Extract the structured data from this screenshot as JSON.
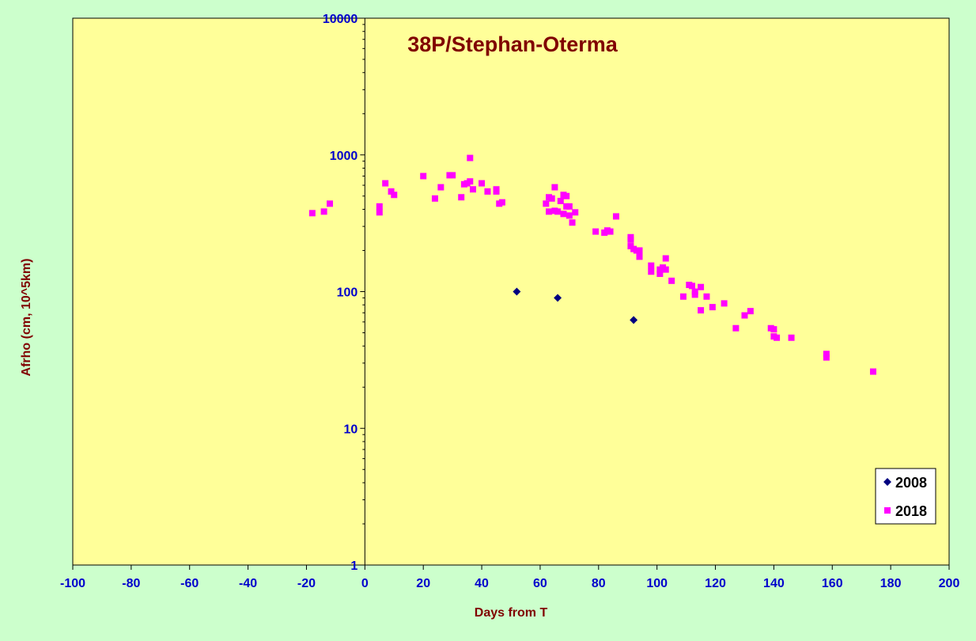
{
  "chart_data": {
    "type": "scatter",
    "title": "38P/Stephan-Oterma",
    "xlabel": "Days from T",
    "ylabel": "Afrho (cm, 10^5km)",
    "xlim": [
      -100,
      200
    ],
    "ylim": [
      1,
      10000
    ],
    "yscale": "log",
    "x_ticks": [
      "-100",
      "-80",
      "-60",
      "-40",
      "-20",
      "0",
      "20",
      "40",
      "60",
      "80",
      "100",
      "120",
      "140",
      "160",
      "180",
      "200"
    ],
    "y_ticks": [
      "1",
      "10",
      "100",
      "1000",
      "10000"
    ],
    "grid": false,
    "legend_position": "bottom-right",
    "colors": {
      "page_bg": "#ccffcc",
      "plot_bg": "#ffff99",
      "tick_text": "#0000cc",
      "title_text": "#800000"
    },
    "series": [
      {
        "name": "2008",
        "marker": "diamond",
        "color": "#000080",
        "points": [
          [
            52,
            100
          ],
          [
            66,
            90
          ],
          [
            92,
            62
          ]
        ]
      },
      {
        "name": "2018",
        "marker": "square",
        "color": "#ff00ff",
        "points": [
          [
            -18,
            375
          ],
          [
            -14,
            385
          ],
          [
            -12,
            440
          ],
          [
            5,
            380
          ],
          [
            5,
            420
          ],
          [
            7,
            620
          ],
          [
            9,
            540
          ],
          [
            10,
            510
          ],
          [
            20,
            700
          ],
          [
            24,
            480
          ],
          [
            26,
            580
          ],
          [
            29,
            710
          ],
          [
            30,
            710
          ],
          [
            33,
            490
          ],
          [
            34,
            610
          ],
          [
            35,
            620
          ],
          [
            36,
            950
          ],
          [
            36,
            640
          ],
          [
            37,
            560
          ],
          [
            40,
            620
          ],
          [
            42,
            540
          ],
          [
            45,
            560
          ],
          [
            45,
            540
          ],
          [
            46,
            440
          ],
          [
            47,
            450
          ],
          [
            62,
            440
          ],
          [
            63,
            490
          ],
          [
            63,
            385
          ],
          [
            64,
            480
          ],
          [
            65,
            580
          ],
          [
            65,
            390
          ],
          [
            66,
            385
          ],
          [
            67,
            460
          ],
          [
            68,
            510
          ],
          [
            68,
            370
          ],
          [
            69,
            500
          ],
          [
            69,
            420
          ],
          [
            70,
            420
          ],
          [
            70,
            360
          ],
          [
            71,
            320
          ],
          [
            72,
            380
          ],
          [
            79,
            275
          ],
          [
            82,
            270
          ],
          [
            83,
            280
          ],
          [
            84,
            275
          ],
          [
            86,
            355
          ],
          [
            91,
            250
          ],
          [
            91,
            240
          ],
          [
            91,
            215
          ],
          [
            92,
            205
          ],
          [
            93,
            200
          ],
          [
            94,
            180
          ],
          [
            94,
            200
          ],
          [
            98,
            155
          ],
          [
            98,
            140
          ],
          [
            101,
            135
          ],
          [
            101,
            145
          ],
          [
            102,
            150
          ],
          [
            103,
            175
          ],
          [
            103,
            145
          ],
          [
            105,
            120
          ],
          [
            109,
            92
          ],
          [
            111,
            112
          ],
          [
            112,
            110
          ],
          [
            113,
            95
          ],
          [
            113,
            100
          ],
          [
            115,
            108
          ],
          [
            115,
            73
          ],
          [
            117,
            92
          ],
          [
            119,
            77
          ],
          [
            123,
            82
          ],
          [
            127,
            54
          ],
          [
            130,
            67
          ],
          [
            132,
            72
          ],
          [
            139,
            54
          ],
          [
            140,
            53
          ],
          [
            140,
            47
          ],
          [
            141,
            46
          ],
          [
            146,
            46
          ],
          [
            158,
            35
          ],
          [
            158,
            33
          ],
          [
            174,
            26
          ]
        ]
      }
    ]
  }
}
